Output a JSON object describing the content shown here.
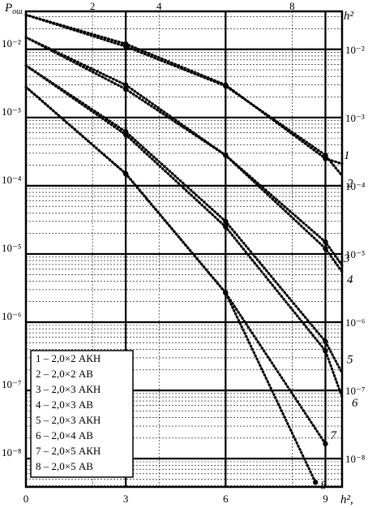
{
  "chart_data": {
    "type": "line",
    "xlabel": "h²,",
    "ylabel": "P_ош",
    "x_axis_bottom": {
      "scale": "linear",
      "range": [
        0,
        9.5
      ],
      "ticks": [
        0,
        3,
        6,
        9
      ],
      "tick_labels": [
        "0",
        "3",
        "6",
        "9"
      ]
    },
    "x_axis_top": {
      "scale": "linear",
      "range": [
        0,
        9.5
      ],
      "ticks": [
        2,
        4,
        8
      ],
      "tick_labels": [
        "2",
        "4",
        "8"
      ],
      "label": "h²"
    },
    "y_axis": {
      "scale": "log",
      "range": [
        3.85e-09,
        0.036
      ],
      "ticks": [
        0.01,
        0.001,
        0.0001,
        1e-05,
        1e-06,
        1e-07,
        1e-08
      ],
      "tick_labels": [
        "10⁻²",
        "10⁻³",
        "10⁻⁴",
        "10⁻⁵",
        "10⁻⁶",
        "10⁻⁷",
        "10⁻⁸"
      ]
    },
    "grid": true,
    "legend_position": "bottom-left",
    "series": [
      {
        "name": "1 – 2,0×2 АКН",
        "x": [
          0,
          3,
          6,
          9,
          9.5
        ],
        "y": [
          0.032,
          0.012,
          0.003,
          0.00025,
          0.00021
        ]
      },
      {
        "name": "2 – 2,0×2 АВ",
        "x": [
          0,
          3,
          6,
          9,
          9.5
        ],
        "y": [
          0.032,
          0.011,
          0.0029,
          0.00028,
          0.00014
        ]
      },
      {
        "name": "3 – 2,0×3 АКН",
        "x": [
          0,
          3,
          6,
          9,
          9.5
        ],
        "y": [
          0.015,
          0.003,
          0.00028,
          1.5e-05,
          6.8e-06
        ]
      },
      {
        "name": "4 – 2,0×3 АВ",
        "x": [
          0,
          3,
          6,
          9,
          9.5
        ],
        "y": [
          0.015,
          0.0026,
          0.00028,
          1.2e-05,
          5.5e-06
        ]
      },
      {
        "name": "5 – 2,0×3 АКН",
        "x": [
          0,
          3,
          6,
          9,
          9.5
        ],
        "y": [
          0.0058,
          0.00062,
          3e-05,
          5.2e-07,
          1.8e-07
        ]
      },
      {
        "name": "6 – 2,0×4 АВ",
        "x": [
          0,
          3,
          6,
          9,
          9.5
        ],
        "y": [
          0.0058,
          0.00056,
          2.5e-05,
          3.8e-07,
          8e-08
        ]
      },
      {
        "name": "7 – 2,0×5 АКН",
        "x": [
          0,
          3,
          6,
          9
        ],
        "y": [
          0.0028,
          0.00015,
          2.7e-06,
          1.65e-08
        ]
      },
      {
        "name": "8 – 2,0×5 АВ",
        "x": [
          0,
          3,
          6,
          8.7
        ],
        "y": [
          0.0028,
          0.00015,
          2.7e-06,
          4.5e-09
        ]
      }
    ],
    "curve_labels": [
      {
        "text": "1",
        "series": 0
      },
      {
        "text": "2",
        "series": 1
      },
      {
        "text": "3",
        "series": 2
      },
      {
        "text": "4",
        "series": 3
      },
      {
        "text": "5",
        "series": 4
      },
      {
        "text": "6",
        "series": 5
      },
      {
        "text": "7",
        "series": 6
      },
      {
        "text": "8",
        "series": 7
      }
    ]
  },
  "colors": {
    "ink": "#000000",
    "background": "#ffffff"
  }
}
